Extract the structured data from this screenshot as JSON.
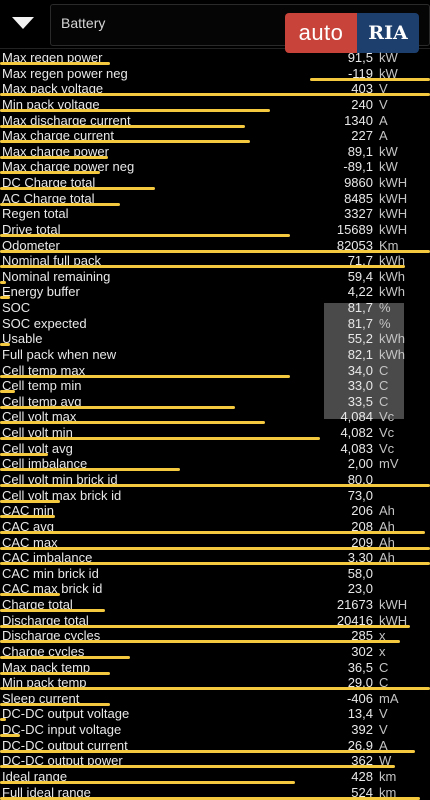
{
  "header": {
    "title": "Battery"
  },
  "watermark": {
    "left": "auto",
    "right": "RIA"
  },
  "colors": {
    "background": "#000000",
    "highlight": "#f4c83f",
    "value_box": "#4a4a4a"
  },
  "rows": [
    {
      "label": "Max regen power",
      "value": "91,5",
      "unit": "kW"
    },
    {
      "label": "Max regen power neg",
      "value": "-119",
      "unit": "kW"
    },
    {
      "label": "Max pack voltage",
      "value": "403",
      "unit": "V"
    },
    {
      "label": "Min pack voltage",
      "value": "240",
      "unit": "V"
    },
    {
      "label": "Max discharge current",
      "value": "1340",
      "unit": "A"
    },
    {
      "label": "Max charge current",
      "value": "227",
      "unit": "A"
    },
    {
      "label": "Max charge power",
      "value": "89,1",
      "unit": "kW"
    },
    {
      "label": "Max charge power neg",
      "value": "-89,1",
      "unit": "kW"
    },
    {
      "label": "DC Charge total",
      "value": "9860",
      "unit": "kWH"
    },
    {
      "label": "AC Charge total",
      "value": "8485",
      "unit": "kWH"
    },
    {
      "label": "Regen total",
      "value": "3327",
      "unit": "kWH"
    },
    {
      "label": "Drive total",
      "value": "15689",
      "unit": "kWH"
    },
    {
      "label": "Odometer",
      "value": "82053",
      "unit": "Km"
    },
    {
      "label": "Nominal full pack",
      "value": "71,7",
      "unit": "kWh"
    },
    {
      "label": "Nominal remaining",
      "value": "59,4",
      "unit": "kWh"
    },
    {
      "label": "Energy buffer",
      "value": "4,22",
      "unit": "kWh"
    },
    {
      "label": "SOC",
      "value": "81,7",
      "unit": "%"
    },
    {
      "label": "SOC expected",
      "value": "81,7",
      "unit": "%"
    },
    {
      "label": "Usable",
      "value": "55,2",
      "unit": "kWh"
    },
    {
      "label": "Full pack when new",
      "value": "82,1",
      "unit": "kWh"
    },
    {
      "label": "Cell temp max",
      "value": "34,0",
      "unit": "C"
    },
    {
      "label": "Cell temp min",
      "value": "33,0",
      "unit": "C"
    },
    {
      "label": "Cell temp avg",
      "value": "33,5",
      "unit": "C"
    },
    {
      "label": "Cell volt max",
      "value": "4,084",
      "unit": "Vc"
    },
    {
      "label": "Cell volt min",
      "value": "4,082",
      "unit": "Vc"
    },
    {
      "label": "Cell volt avg",
      "value": "4,083",
      "unit": "Vc"
    },
    {
      "label": "Cell imbalance",
      "value": "2,00",
      "unit": "mV"
    },
    {
      "label": "Cell volt min brick id",
      "value": "80,0",
      "unit": ""
    },
    {
      "label": "Cell volt max brick id",
      "value": "73,0",
      "unit": ""
    },
    {
      "label": "CAC min",
      "value": "206",
      "unit": "Ah"
    },
    {
      "label": "CAC avg",
      "value": "208",
      "unit": "Ah"
    },
    {
      "label": "CAC max",
      "value": "209",
      "unit": "Ah"
    },
    {
      "label": "CAC imbalance",
      "value": "3,30",
      "unit": "Ah"
    },
    {
      "label": "CAC min brick id",
      "value": "58,0",
      "unit": ""
    },
    {
      "label": "CAC max brick id",
      "value": "23,0",
      "unit": ""
    },
    {
      "label": "Charge total",
      "value": "21673",
      "unit": "kWH"
    },
    {
      "label": "Discharge total",
      "value": "20416",
      "unit": "kWH"
    },
    {
      "label": "Discharge cycles",
      "value": "285",
      "unit": "x"
    },
    {
      "label": "Charge cycles",
      "value": "302",
      "unit": "x"
    },
    {
      "label": "Max pack temp",
      "value": "36,5",
      "unit": "C"
    },
    {
      "label": "Min pack temp",
      "value": "29,0",
      "unit": "C"
    },
    {
      "label": "Sleep current",
      "value": "-406",
      "unit": "mA"
    },
    {
      "label": "DC-DC output voltage",
      "value": "13,4",
      "unit": "V"
    },
    {
      "label": "DC-DC input voltage",
      "value": "392",
      "unit": "V"
    },
    {
      "label": "DC-DC output current",
      "value": "26,9",
      "unit": "A"
    },
    {
      "label": "DC-DC output power",
      "value": "362",
      "unit": "W"
    },
    {
      "label": "Ideal range",
      "value": "428",
      "unit": "km"
    },
    {
      "label": "Full ideal range",
      "value": "524",
      "unit": "km"
    }
  ]
}
